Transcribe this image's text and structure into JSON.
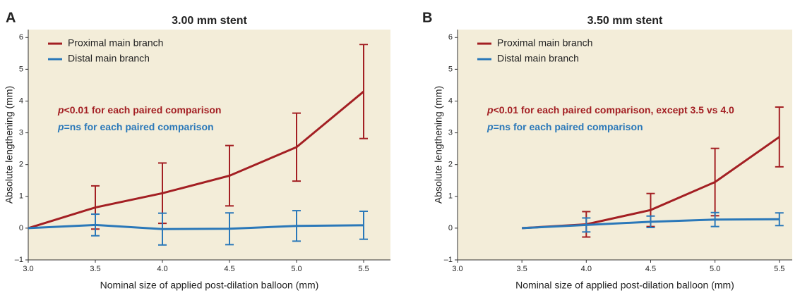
{
  "chart_data": [
    {
      "type": "line",
      "panel": "A",
      "title": "3.00 mm stent",
      "x_label": "Nominal size of applied post-dilation balloon (mm)",
      "y_label": "Absolute lengthening (mm)",
      "x": [
        3.0,
        3.5,
        4.0,
        4.5,
        5.0,
        5.5
      ],
      "series": [
        {
          "name": "Proximal main branch",
          "color": "#a31f23",
          "values": [
            0,
            0.65,
            1.1,
            1.65,
            2.55,
            4.3
          ],
          "errors": [
            null,
            0.68,
            0.95,
            0.95,
            1.07,
            1.48
          ]
        },
        {
          "name": "Distal main branch",
          "color": "#2a78b9",
          "values": [
            0,
            0.1,
            -0.03,
            -0.02,
            0.07,
            0.09
          ],
          "errors": [
            null,
            0.34,
            0.5,
            0.5,
            0.48,
            0.44
          ]
        }
      ],
      "annotations": [
        {
          "italic": "p",
          "text": "<0.01 for each paired comparison",
          "color": "#a31f23"
        },
        {
          "italic": "p",
          "text": "=ns for each paired comparison",
          "color": "#2a78b9"
        }
      ],
      "xlim": [
        3.0,
        5.7
      ],
      "xticks": [
        {
          "value": 3,
          "label": "3.0"
        },
        3.5,
        {
          "value": 4,
          "label": "4.0"
        },
        4.5,
        {
          "value": 5,
          "label": "5.0"
        },
        5.5
      ],
      "ylim": [
        -1,
        6.25
      ],
      "yticks": [
        {
          "value": -1,
          "label": "–1"
        },
        0,
        1,
        2,
        3,
        4,
        5,
        6
      ]
    },
    {
      "type": "line",
      "panel": "B",
      "title": "3.50 mm stent",
      "x_label": "Nominal size of applied post-dilation balloon (mm)",
      "y_label": "Absolute lengthening (mm)",
      "x": [
        3.5,
        4.0,
        4.5,
        5.0,
        5.5
      ],
      "series": [
        {
          "name": "Proximal main branch",
          "color": "#a31f23",
          "values": [
            0,
            0.12,
            0.57,
            1.45,
            2.87
          ],
          "errors": [
            null,
            0.4,
            0.52,
            1.06,
            0.94
          ]
        },
        {
          "name": "Distal main branch",
          "color": "#2a78b9",
          "values": [
            0,
            0.1,
            0.2,
            0.27,
            0.28
          ],
          "errors": [
            null,
            0.22,
            0.18,
            0.22,
            0.2
          ]
        }
      ],
      "annotations": [
        {
          "italic": "p",
          "text": "<0.01 for each paired comparison, except 3.5 vs 4.0",
          "color": "#a31f23"
        },
        {
          "italic": "p",
          "text": "=ns for each paired comparison",
          "color": "#2a78b9"
        }
      ],
      "xlim": [
        3.0,
        5.6
      ],
      "xticks": [
        {
          "value": 3,
          "label": "3.0"
        },
        3.5,
        {
          "value": 4,
          "label": "4.0"
        },
        4.5,
        {
          "value": 5,
          "label": "5.0"
        },
        5.5
      ],
      "ylim": [
        -1,
        6.25
      ],
      "yticks": [
        {
          "value": -1,
          "label": "–1"
        },
        0,
        1,
        2,
        3,
        4,
        5,
        6
      ]
    }
  ]
}
